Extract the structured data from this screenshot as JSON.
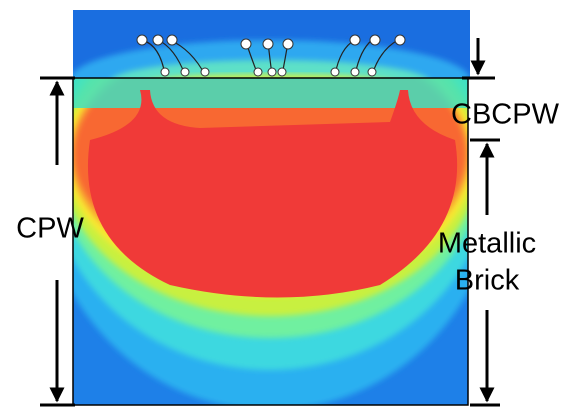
{
  "labels": {
    "cpw": "CPW",
    "cbcpw": "CBCPW",
    "metallic_brick": [
      "Metallic",
      "Brick"
    ]
  }
}
